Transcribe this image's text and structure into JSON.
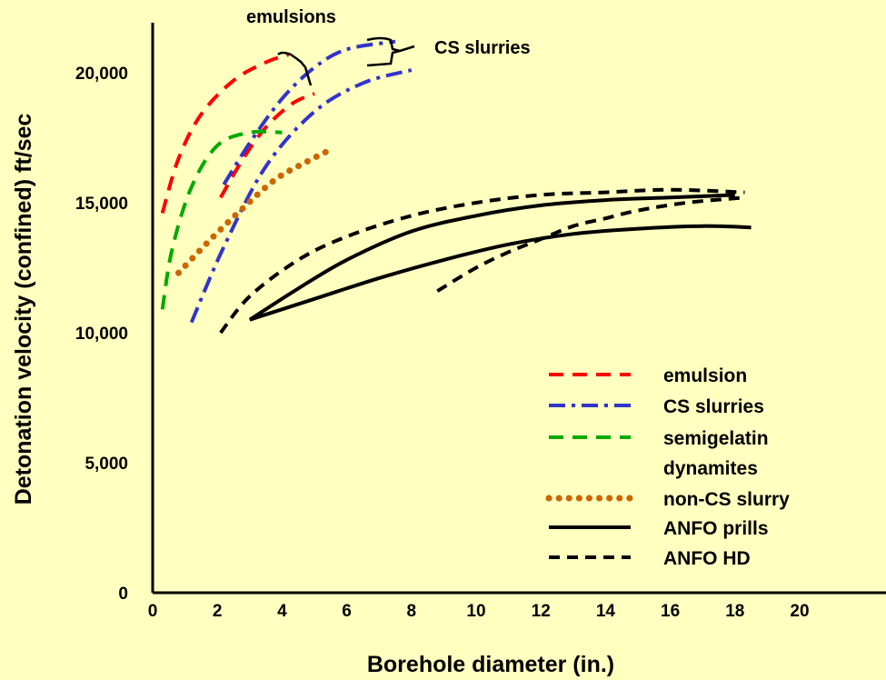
{
  "chart_data": {
    "type": "line",
    "xlabel": "Borehole diameter (in.)",
    "ylabel": "Detonation velocity (confined) ft/sec",
    "xlim": [
      0,
      20
    ],
    "ylim": [
      0,
      20000
    ],
    "x_ticks": [
      "0",
      "2",
      "4",
      "6",
      "8",
      "10",
      "12",
      "14",
      "16",
      "18",
      "20"
    ],
    "y_ticks": [
      "0",
      "5,000",
      "10,000",
      "15,000",
      "20,000"
    ],
    "grid": false,
    "legend_position": "bottom-right",
    "annotations": [
      "emulsions",
      "CS slurries"
    ],
    "series": [
      {
        "name": "emulsion",
        "color": "#FF0000",
        "style": "dashed",
        "curves": [
          {
            "x": [
              0.3,
              0.8,
              1.5,
              2.5,
              3.5,
              4.2
            ],
            "y": [
              14600,
              16700,
              18400,
              19700,
              20400,
              20700
            ]
          },
          {
            "x": [
              2.1,
              2.8,
              3.5,
              4.3,
              5.0
            ],
            "y": [
              15200,
              16700,
              17900,
              18800,
              19200
            ]
          }
        ]
      },
      {
        "name": "CS slurries",
        "color": "#3333CC",
        "style": "dashdot",
        "curves": [
          {
            "x": [
              2.2,
              3.0,
              4.0,
              5.0,
              6.0,
              7.5
            ],
            "y": [
              15700,
              17300,
              19000,
              20200,
              20900,
              21200
            ]
          },
          {
            "x": [
              1.2,
              2.2,
              3.5,
              5.0,
              6.5,
              8.0
            ],
            "y": [
              10400,
              13300,
              16400,
              18500,
              19600,
              20100
            ]
          }
        ]
      },
      {
        "name": "semigelatin dynamites",
        "color": "#00AA00",
        "style": "dashed",
        "curves": [
          {
            "x": [
              0.3,
              0.6,
              1.2,
              2.0,
              3.0,
              4.0
            ],
            "y": [
              10900,
              13200,
              15600,
              17200,
              17700,
              17700
            ]
          }
        ]
      },
      {
        "name": "non-CS slurry",
        "color": "#CC6600",
        "style": "dotted",
        "curves": [
          {
            "x": [
              0.8,
              1.8,
              2.8,
              3.8,
              4.8,
              5.6
            ],
            "y": [
              12300,
              13600,
              14800,
              15900,
              16600,
              17100
            ]
          }
        ]
      },
      {
        "name": "ANFO prills",
        "color": "#000000",
        "style": "solid",
        "curves": [
          {
            "x": [
              3.0,
              4.5,
              6.0,
              8.0,
              10.0,
              12.0,
              14.0,
              16.0,
              18.0
            ],
            "y": [
              10500,
              11700,
              12800,
              13900,
              14500,
              14900,
              15100,
              15200,
              15300
            ]
          },
          {
            "x": [
              3.0,
              5.0,
              7.0,
              9.0,
              11.0,
              13.0,
              15.0,
              17.0,
              18.5
            ],
            "y": [
              10500,
              11300,
              12100,
              12800,
              13400,
              13800,
              14000,
              14100,
              14050
            ]
          }
        ]
      },
      {
        "name": "ANFO HD",
        "color": "#000000",
        "style": "shortdash",
        "curves": [
          {
            "x": [
              2.1,
              3.0,
              4.5,
              6.0,
              8.0,
              10.0,
              12.0,
              14.0,
              16.0,
              18.3
            ],
            "y": [
              10000,
              11400,
              12800,
              13700,
              14500,
              15000,
              15300,
              15400,
              15500,
              15400
            ]
          },
          {
            "x": [
              8.8,
              10.0,
              11.0,
              12.0,
              13.0,
              14.0,
              15.0,
              16.5,
              18.3
            ],
            "y": [
              11600,
              12500,
              13100,
              13600,
              14100,
              14400,
              14700,
              15000,
              15200
            ]
          }
        ]
      }
    ],
    "legend": [
      {
        "label": "emulsion",
        "lines": [
          "emulsion"
        ],
        "color": "#FF0000",
        "style": "dashed"
      },
      {
        "label": "CS slurries",
        "lines": [
          "CS slurries"
        ],
        "color": "#3333CC",
        "style": "dashdot"
      },
      {
        "label": "semigelatin dynamites",
        "lines": [
          "semigelatin",
          "dynamites"
        ],
        "color": "#00AA00",
        "style": "dashed"
      },
      {
        "label": "non-CS slurry",
        "lines": [
          "non-CS slurry"
        ],
        "color": "#CC6600",
        "style": "dotted"
      },
      {
        "label": "ANFO prills",
        "lines": [
          "ANFO prills"
        ],
        "color": "#000000",
        "style": "solid"
      },
      {
        "label": "ANFO HD",
        "lines": [
          "ANFO HD"
        ],
        "color": "#000000",
        "style": "shortdash"
      }
    ]
  }
}
